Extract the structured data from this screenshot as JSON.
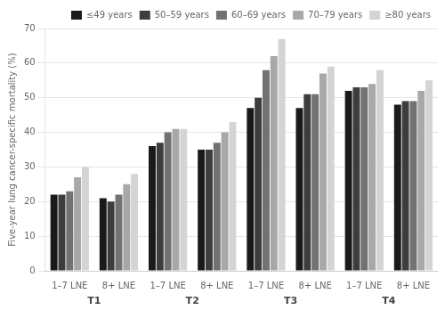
{
  "chart_data": {
    "type": "bar",
    "ylabel": "Five-year lung cancer-specific mortality (%)",
    "categories": [
      "1–7 LNE",
      "8+ LNE",
      "1–7 LNE",
      "8+ LNE",
      "1–7 LNE",
      "8+ LNE",
      "1–7 LNE",
      "8+ LNE"
    ],
    "series": [
      {
        "name": "≤49 years",
        "color": "#1a1a1a",
        "values": [
          22,
          21,
          36,
          35,
          47,
          47,
          52,
          48
        ]
      },
      {
        "name": "50–59 years",
        "color": "#3d3d3d",
        "values": [
          22,
          20,
          37,
          35,
          50,
          51,
          53,
          49
        ]
      },
      {
        "name": "60–69 years",
        "color": "#727272",
        "values": [
          23,
          22,
          40,
          37,
          58,
          51,
          53,
          49
        ]
      },
      {
        "name": "70–79 years",
        "color": "#a8a8a8",
        "values": [
          27,
          25,
          41,
          40,
          62,
          57,
          54,
          52
        ]
      },
      {
        "name": "≥80 years",
        "color": "#d4d4d4",
        "values": [
          30,
          28,
          41,
          43,
          67,
          59,
          58,
          55
        ]
      }
    ],
    "annotations": [
      "T1",
      "T2",
      "T3",
      "T4"
    ],
    "ylim": [
      0,
      70
    ],
    "yticks": [
      0,
      10,
      20,
      30,
      40,
      50,
      60,
      70
    ],
    "grid": true,
    "legend": "top"
  }
}
